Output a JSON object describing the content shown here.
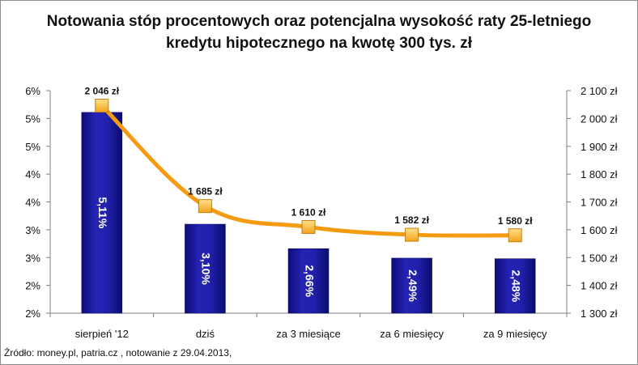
{
  "chart_data": {
    "type": "bar",
    "title_line1": "Notowania stóp procentowych oraz potencjalna wysokość raty 25-letniego",
    "title_line2": "kredytu hipotecznego na kwotę 300 tys. zł",
    "categories": [
      "sierpień '12",
      "dziś",
      "za 3 miesiące",
      "za 6 miesięcy",
      "za 9 miesięcy"
    ],
    "series": [
      {
        "type": "bar",
        "axis": "left",
        "values": [
          5.11,
          3.1,
          2.66,
          2.49,
          2.48
        ],
        "labels": [
          "5,11%",
          "3,10%",
          "2,66%",
          "2,49%",
          "2,48%"
        ],
        "color": "#1a1a9c"
      },
      {
        "type": "line",
        "axis": "right",
        "values": [
          2046,
          1685,
          1610,
          1582,
          1580
        ],
        "labels": [
          "2 046 zł",
          "1 685 zł",
          "1 610 zł",
          "1 582 zł",
          "1 580 zł"
        ],
        "color": "#f59b12"
      }
    ],
    "y_left": {
      "min": 1.5,
      "max": 5.5,
      "tick_labels": [
        "6%",
        "5%",
        "5%",
        "4%",
        "4%",
        "3%",
        "3%",
        "2%",
        "2%"
      ]
    },
    "y_right": {
      "min": 1300,
      "max": 2100,
      "tick_labels": [
        "2 100 zł",
        "2 000 zł",
        "1 900 zł",
        "1 800 zł",
        "1 700 zł",
        "1 600 zł",
        "1 500 zł",
        "1 400 zł",
        "1 300 zł"
      ]
    },
    "grid": false,
    "legend": "none"
  },
  "source_text": "Źródło: money.pl, patria.cz , notowanie z 29.04.2013,"
}
